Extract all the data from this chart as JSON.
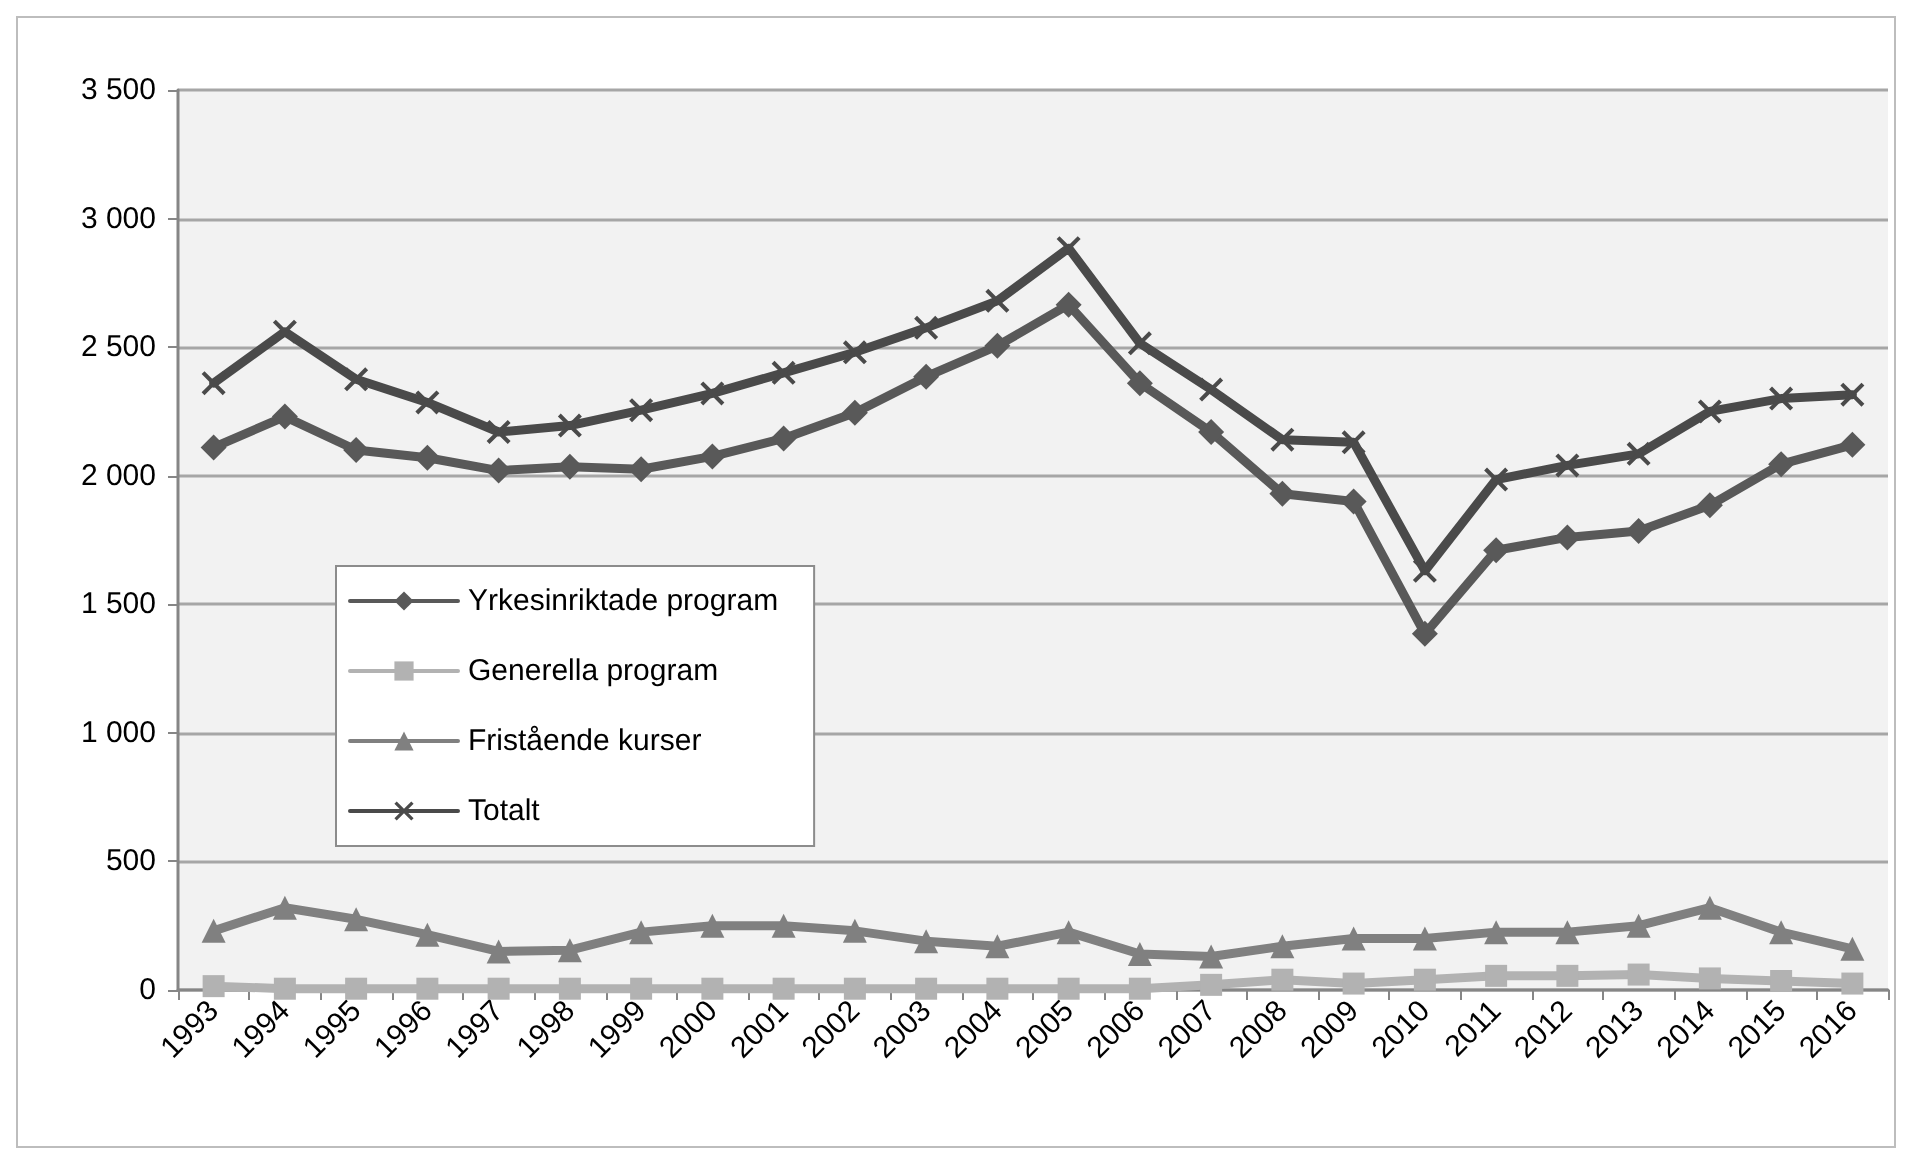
{
  "chart_data": {
    "type": "line",
    "categories": [
      "1993",
      "1994",
      "1995",
      "1996",
      "1997",
      "1998",
      "1999",
      "2000",
      "2001",
      "2002",
      "2003",
      "2004",
      "2005",
      "2006",
      "2007",
      "2008",
      "2009",
      "2010",
      "2011",
      "2012",
      "2013",
      "2014",
      "2015",
      "2016"
    ],
    "series": [
      {
        "name": "Yrkesinriktade program",
        "color": "#595959",
        "marker": "diamond",
        "values": [
          2110,
          2230,
          2100,
          2070,
          2020,
          2035,
          2025,
          2075,
          2145,
          2245,
          2385,
          2505,
          2665,
          2360,
          2170,
          1930,
          1900,
          1385,
          1710,
          1760,
          1785,
          1885,
          2045,
          2120
        ]
      },
      {
        "name": "Generella program",
        "color": "#b2b2b2",
        "marker": "square",
        "values": [
          15,
          5,
          5,
          5,
          5,
          5,
          5,
          5,
          5,
          5,
          5,
          5,
          5,
          5,
          20,
          40,
          25,
          40,
          55,
          55,
          60,
          45,
          35,
          25
        ]
      },
      {
        "name": "Fristående kurser",
        "color": "#808080",
        "marker": "triangle",
        "values": [
          230,
          320,
          275,
          215,
          150,
          155,
          225,
          250,
          250,
          230,
          190,
          170,
          225,
          140,
          130,
          170,
          200,
          200,
          225,
          225,
          250,
          320,
          225,
          160
        ]
      },
      {
        "name": "Totalt",
        "color": "#4a4a4a",
        "marker": "cross",
        "values": [
          2360,
          2560,
          2375,
          2285,
          2170,
          2195,
          2255,
          2320,
          2400,
          2480,
          2575,
          2680,
          2885,
          2515,
          2335,
          2140,
          2130,
          1630,
          1985,
          2040,
          2085,
          2250,
          2300,
          2315
        ]
      }
    ],
    "ylim": [
      0,
      3500
    ],
    "yticks": [
      0,
      500,
      {
        "value": 1000,
        "label": "1 000"
      },
      {
        "value": 1500,
        "label": "1 500"
      },
      {
        "value": 2000,
        "label": "2 000"
      },
      {
        "value": 2500,
        "label": "2 500"
      },
      {
        "value": 3000,
        "label": "3 000"
      },
      {
        "value": 3500,
        "label": "3 500"
      }
    ],
    "grid": "y",
    "legend": "left",
    "line_style": "solid"
  }
}
